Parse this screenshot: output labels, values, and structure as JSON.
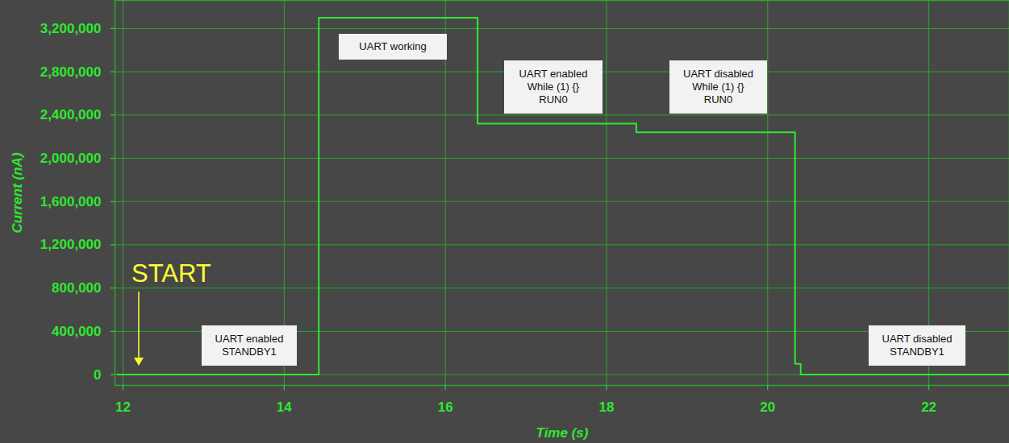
{
  "chart_data": {
    "type": "line",
    "x_label": "Time (s)",
    "y_label": "Current (nA)",
    "color": "#2ee82e",
    "x": [
      11.93,
      14.43,
      16.4,
      18.37,
      20.34,
      20.41,
      23.0
    ],
    "values": [
      0,
      3300000,
      2320000,
      2240000,
      100000,
      0,
      0
    ],
    "xlim": [
      11.9,
      23.0
    ],
    "xticks": [
      12,
      14,
      16,
      18,
      20,
      22
    ],
    "ylim": [
      -100000,
      3460000
    ],
    "yticks": [
      0,
      {
        "value": 400000,
        "label": "400,000"
      },
      {
        "value": 800000,
        "label": "800,000"
      },
      {
        "value": 1200000,
        "label": "1,200,000"
      },
      {
        "value": 1600000,
        "label": "1,600,000"
      },
      {
        "value": 2000000,
        "label": "2,000,000"
      },
      {
        "value": 2400000,
        "label": "2,400,000"
      },
      {
        "value": 2800000,
        "label": "2,800,000"
      },
      {
        "value": 3200000,
        "label": "3,200,000"
      }
    ],
    "grid": true,
    "annotations": [
      "UART enabled\nSTANDBY1",
      "UART working",
      "UART enabled\nWhile (1) {}\nRUN0",
      "UART disabled\nWhile (1) {}\nRUN0",
      "UART disabled\nSTANDBY1",
      "START"
    ]
  }
}
